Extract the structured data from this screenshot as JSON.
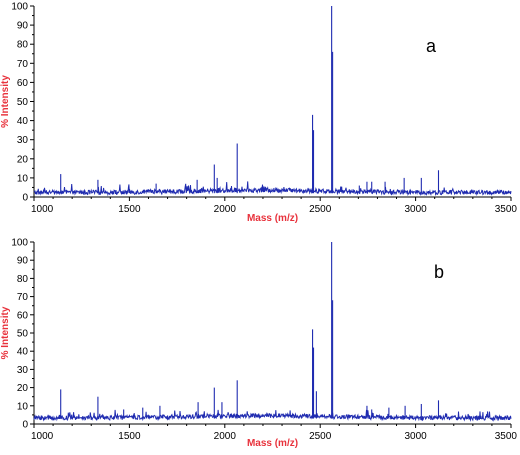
{
  "chart_data": [
    {
      "type": "line",
      "panel_label": "a",
      "xlabel": "Mass (m/z)",
      "ylabel": "% Intensity",
      "xlim": [
        1000,
        3500
      ],
      "ylim": [
        0,
        100
      ],
      "x_ticks": [
        "1000",
        "1500",
        "2000",
        "2500",
        "3000",
        "3500"
      ],
      "y_ticks": [
        "0",
        "10",
        "20",
        "30",
        "40",
        "50",
        "60",
        "70",
        "80",
        "90",
        "100"
      ],
      "series": [
        {
          "color": "#1f2bb0",
          "baseline": 2,
          "peaks": [
            {
              "x": 1140,
              "y": 12
            },
            {
              "x": 1335,
              "y": 9
            },
            {
              "x": 1640,
              "y": 7
            },
            {
              "x": 1855,
              "y": 9
            },
            {
              "x": 1945,
              "y": 17
            },
            {
              "x": 1960,
              "y": 10
            },
            {
              "x": 2065,
              "y": 28
            },
            {
              "x": 2460,
              "y": 43
            },
            {
              "x": 2465,
              "y": 35
            },
            {
              "x": 2560,
              "y": 100
            },
            {
              "x": 2565,
              "y": 76
            },
            {
              "x": 2705,
              "y": 6
            },
            {
              "x": 2745,
              "y": 8
            },
            {
              "x": 2770,
              "y": 8
            },
            {
              "x": 2840,
              "y": 8
            },
            {
              "x": 2940,
              "y": 10
            },
            {
              "x": 3030,
              "y": 10
            },
            {
              "x": 3120,
              "y": 14
            }
          ]
        }
      ]
    },
    {
      "type": "line",
      "panel_label": "b",
      "xlabel": "Mass (m/z)",
      "ylabel": "% Intensity",
      "xlim": [
        1000,
        3500
      ],
      "ylim": [
        0,
        100
      ],
      "x_ticks": [
        "1000",
        "1500",
        "2000",
        "2500",
        "3000",
        "3500"
      ],
      "y_ticks": [
        "0",
        "10",
        "20",
        "30",
        "40",
        "50",
        "60",
        "70",
        "80",
        "90",
        "100"
      ],
      "series": [
        {
          "color": "#1f2bb0",
          "baseline": 3,
          "peaks": [
            {
              "x": 1140,
              "y": 19
            },
            {
              "x": 1335,
              "y": 15
            },
            {
              "x": 1470,
              "y": 8
            },
            {
              "x": 1570,
              "y": 9
            },
            {
              "x": 1660,
              "y": 10
            },
            {
              "x": 1860,
              "y": 12
            },
            {
              "x": 1945,
              "y": 20
            },
            {
              "x": 1985,
              "y": 12
            },
            {
              "x": 2065,
              "y": 24
            },
            {
              "x": 2460,
              "y": 52
            },
            {
              "x": 2465,
              "y": 42
            },
            {
              "x": 2480,
              "y": 18
            },
            {
              "x": 2560,
              "y": 100
            },
            {
              "x": 2565,
              "y": 68
            },
            {
              "x": 2745,
              "y": 10
            },
            {
              "x": 2770,
              "y": 8
            },
            {
              "x": 2860,
              "y": 9
            },
            {
              "x": 2945,
              "y": 10
            },
            {
              "x": 3030,
              "y": 11
            },
            {
              "x": 3120,
              "y": 13
            }
          ]
        }
      ]
    }
  ]
}
